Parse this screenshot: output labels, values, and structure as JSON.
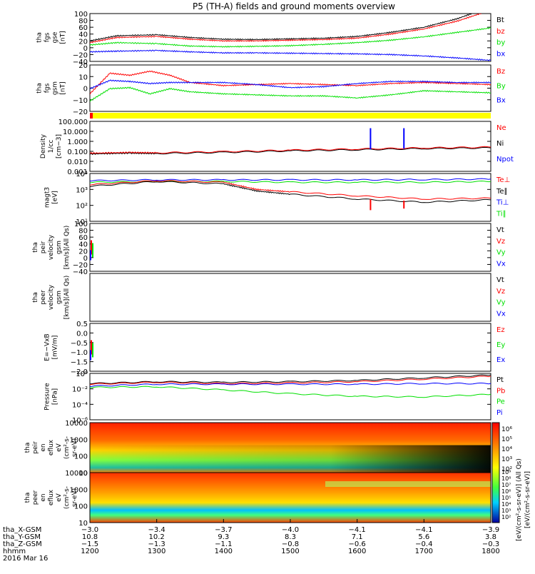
{
  "title": "P5 (TH-A) fields and ground moments overview",
  "colors": {
    "black": "#000000",
    "red": "#ff0000",
    "green": "#00e000",
    "blue": "#0000ff",
    "yellow": "#ffff00",
    "bar_red": "#ff0000"
  },
  "chart_data": [
    {
      "id": "fgs_gse",
      "type": "line",
      "ylabel": [
        "tha",
        "fgs",
        "gse",
        "[nT]"
      ],
      "ylim": [
        -40,
        100
      ],
      "yticks": [
        "100",
        "80",
        "60",
        "40",
        "20",
        "0",
        "−20",
        "−40"
      ],
      "legend": [
        {
          "label": "Bt",
          "color": "black"
        },
        {
          "label": "bz",
          "color": "red"
        },
        {
          "label": "by",
          "color": "green"
        },
        {
          "label": "bx",
          "color": "blue"
        }
      ],
      "series": [
        {
          "color": "black",
          "x": [
            1200,
            1240,
            1300,
            1350,
            1400,
            1450,
            1500,
            1550,
            1600,
            1650,
            1700,
            1750,
            1800
          ],
          "y": [
            20,
            35,
            38,
            30,
            25,
            24,
            26,
            28,
            33,
            45,
            60,
            85,
            120
          ]
        },
        {
          "color": "red",
          "x": [
            1200,
            1240,
            1300,
            1350,
            1400,
            1450,
            1500,
            1550,
            1600,
            1650,
            1700,
            1750,
            1800
          ],
          "y": [
            15,
            30,
            33,
            25,
            20,
            20,
            22,
            24,
            28,
            40,
            55,
            78,
            110
          ]
        },
        {
          "color": "green",
          "x": [
            1200,
            1240,
            1300,
            1350,
            1400,
            1450,
            1500,
            1550,
            1600,
            1650,
            1700,
            1750,
            1800
          ],
          "y": [
            8,
            15,
            12,
            5,
            3,
            4,
            6,
            10,
            15,
            22,
            32,
            45,
            58
          ]
        },
        {
          "color": "blue",
          "x": [
            1200,
            1240,
            1300,
            1350,
            1400,
            1450,
            1500,
            1550,
            1600,
            1650,
            1700,
            1750,
            1800
          ],
          "y": [
            -12,
            -10,
            -8,
            -12,
            -15,
            -15,
            -16,
            -17,
            -18,
            -20,
            -24,
            -30,
            -37
          ]
        }
      ]
    },
    {
      "id": "fgs_gsm",
      "type": "line",
      "ylabel": [
        "tha",
        "fgs",
        "gsm",
        "[nT]"
      ],
      "ylim": [
        -25,
        20
      ],
      "yticks": [
        "20",
        "10",
        "0",
        "−10",
        "−20"
      ],
      "legend": [
        {
          "label": "Bz",
          "color": "red"
        },
        {
          "label": "By",
          "color": "green"
        },
        {
          "label": "Bx",
          "color": "blue"
        }
      ],
      "series": [
        {
          "color": "red",
          "x": [
            1200,
            1230,
            1260,
            1290,
            1320,
            1350,
            1400,
            1450,
            1500,
            1550,
            1600,
            1650,
            1700,
            1750,
            1800
          ],
          "y": [
            -8,
            12,
            10,
            14,
            10,
            3,
            0,
            1,
            2,
            1,
            0,
            2,
            3,
            2,
            1
          ]
        },
        {
          "color": "green",
          "x": [
            1200,
            1230,
            1260,
            1290,
            1320,
            1350,
            1400,
            1450,
            1500,
            1550,
            1600,
            1650,
            1700,
            1750,
            1800
          ],
          "y": [
            -15,
            -3,
            -2,
            -8,
            -3,
            -6,
            -8,
            -9,
            -10,
            -10,
            -12,
            -9,
            -5,
            -6,
            -7
          ]
        },
        {
          "color": "blue",
          "x": [
            1200,
            1230,
            1260,
            1290,
            1320,
            1350,
            1400,
            1450,
            1500,
            1550,
            1600,
            1650,
            1700,
            1750,
            1800
          ],
          "y": [
            -3,
            5,
            4,
            2,
            3,
            3,
            3,
            1,
            -2,
            -1,
            2,
            4,
            4,
            3,
            3
          ]
        }
      ]
    },
    {
      "id": "density",
      "type": "line",
      "log": true,
      "ylabel": [
        "Density",
        "1/cc",
        "[cm−3]"
      ],
      "ylim": [
        -3.3,
        3.3
      ],
      "yticks": [
        "100.000",
        "10.000",
        "1.000",
        "0.100",
        "0.010",
        "0.001"
      ],
      "legend": [
        {
          "label": "Ne",
          "color": "red"
        },
        {
          "label": "Ni",
          "color": "black"
        },
        {
          "label": "Npot",
          "color": "blue"
        }
      ],
      "series": [
        {
          "color": "black",
          "x": [
            1200,
            1260,
            1300,
            1400,
            1500,
            1600,
            1700,
            1800
          ],
          "y": [
            -1.0,
            -0.9,
            -0.95,
            -0.8,
            -0.6,
            -0.45,
            -0.3,
            -0.2
          ]
        },
        {
          "color": "red",
          "x": [
            1200,
            1260,
            1300,
            1400,
            1500,
            1600,
            1700,
            1800
          ],
          "y": [
            -0.9,
            -0.8,
            -0.85,
            -0.7,
            -0.5,
            -0.35,
            -0.2,
            -0.1
          ]
        }
      ],
      "spikes": [
        {
          "x": 1620,
          "from": -0.4,
          "to": 2.4,
          "color": "blue"
        },
        {
          "x": 1670,
          "from": -0.3,
          "to": 2.4,
          "color": "blue"
        }
      ]
    },
    {
      "id": "temperature",
      "type": "line",
      "log": true,
      "ylabel": [
        "magt3",
        "[eV]"
      ],
      "ylim": [
        1,
        4
      ],
      "yticks": [
        "10⁴",
        "10³",
        "10²",
        "10¹"
      ],
      "legend": [
        {
          "label": "Te⊥",
          "color": "red"
        },
        {
          "label": "Te∥",
          "color": "black"
        },
        {
          "label": "Ti⊥",
          "color": "blue"
        },
        {
          "label": "Ti∥",
          "color": "green"
        }
      ],
      "series": [
        {
          "color": "blue",
          "x": [
            1200,
            1300,
            1400,
            1500,
            1600,
            1700,
            1800
          ],
          "y": [
            3.55,
            3.6,
            3.6,
            3.6,
            3.6,
            3.62,
            3.65
          ]
        },
        {
          "color": "green",
          "x": [
            1200,
            1300,
            1400,
            1500,
            1600,
            1700,
            1800
          ],
          "y": [
            3.45,
            3.5,
            3.5,
            3.45,
            3.45,
            3.45,
            3.5
          ]
        },
        {
          "color": "red",
          "x": [
            1200,
            1300,
            1400,
            1450,
            1500,
            1600,
            1700,
            1800
          ],
          "y": [
            3.3,
            3.55,
            3.45,
            3.0,
            2.85,
            2.6,
            2.4,
            2.45
          ]
        },
        {
          "color": "black",
          "x": [
            1200,
            1300,
            1400,
            1450,
            1500,
            1600,
            1700,
            1800
          ],
          "y": [
            3.2,
            3.5,
            3.35,
            2.9,
            2.7,
            2.4,
            2.2,
            2.35
          ]
        }
      ],
      "spikes": [
        {
          "x": 1620,
          "from": 2.4,
          "to": 1.7,
          "color": "red"
        },
        {
          "x": 1670,
          "from": 2.3,
          "to": 1.8,
          "color": "red"
        }
      ]
    },
    {
      "id": "peir_velocity",
      "type": "line",
      "ylabel": [
        "tha",
        "peir",
        "velocity",
        "gsm",
        "[km/s](All Qs)"
      ],
      "ylim": [
        -40,
        100
      ],
      "yticks": [
        "100",
        "80",
        "60",
        "40",
        "20",
        "0",
        "−20",
        "−40"
      ],
      "legend": [
        {
          "label": "Vt",
          "color": "black"
        },
        {
          "label": "Vz",
          "color": "red"
        },
        {
          "label": "Vy",
          "color": "green"
        },
        {
          "label": "Vx",
          "color": "blue"
        }
      ],
      "series": []
    },
    {
      "id": "peer_velocity",
      "type": "line",
      "ylabel": [
        "tha",
        "peer",
        "velocity",
        "gsm",
        "[km/s](All Qs)"
      ],
      "ylim": [
        0,
        1
      ],
      "yticks": [],
      "legend": [
        {
          "label": "Vt",
          "color": "black"
        },
        {
          "label": "Vz",
          "color": "red"
        },
        {
          "label": "Vy",
          "color": "green"
        },
        {
          "label": "Vx",
          "color": "blue"
        }
      ],
      "series": []
    },
    {
      "id": "efield",
      "type": "line",
      "ylabel": [
        "E=−VxB",
        "[mV/m]"
      ],
      "ylim": [
        -2.0,
        0.6
      ],
      "yticks": [
        "0.5",
        "0.0",
        "−0.5",
        "−1.0",
        "−1.5",
        "−2.0"
      ],
      "legend": [
        {
          "label": "Ez",
          "color": "red"
        },
        {
          "label": "Ey",
          "color": "green"
        },
        {
          "label": "Ex",
          "color": "blue"
        }
      ],
      "series": []
    },
    {
      "id": "pressure",
      "type": "line",
      "log": true,
      "ylabel": [
        "Pressure",
        "[nPa]"
      ],
      "ylim": [
        -6.3,
        1
      ],
      "yticks": [
        "10⁰",
        "10⁻²",
        "10⁻⁴",
        "10⁻⁶"
      ],
      "legend": [
        {
          "label": "Pt",
          "color": "black"
        },
        {
          "label": "Pb",
          "color": "red"
        },
        {
          "label": "Pe",
          "color": "green"
        },
        {
          "label": "Pi",
          "color": "blue"
        }
      ],
      "series": [
        {
          "color": "black",
          "x": [
            1200,
            1300,
            1400,
            1500,
            1600,
            1700,
            1800
          ],
          "y": [
            -0.6,
            -0.3,
            -0.4,
            -0.3,
            -0.1,
            0.3,
            0.75
          ]
        },
        {
          "color": "red",
          "x": [
            1200,
            1300,
            1400,
            1500,
            1600,
            1700,
            1800
          ],
          "y": [
            -0.7,
            -0.4,
            -0.6,
            -0.5,
            -0.3,
            0.1,
            0.55
          ]
        },
        {
          "color": "blue",
          "x": [
            1200,
            1300,
            1400,
            1500,
            1600,
            1700,
            1800
          ],
          "y": [
            -1.0,
            -0.7,
            -0.7,
            -0.7,
            -0.7,
            -0.6,
            -0.6
          ]
        },
        {
          "color": "green",
          "x": [
            1200,
            1300,
            1400,
            1500,
            1600,
            1700,
            1800
          ],
          "y": [
            -1.2,
            -1.1,
            -1.6,
            -2.2,
            -2.6,
            -2.7,
            -2.3
          ]
        }
      ]
    },
    {
      "id": "peir_spec",
      "type": "heatmap",
      "ylabel": [
        "tha",
        "peir",
        "en",
        "eflux",
        "eV",
        "(cm²-s-",
        "sr-eV)"
      ],
      "yticks": [
        "10000",
        "1000",
        "100",
        "10"
      ]
    },
    {
      "id": "peer_spec",
      "type": "heatmap",
      "ylabel": [
        "tha",
        "peer",
        "en",
        "eflux",
        "eV",
        "(cm²-s-",
        "sr-eV)"
      ],
      "yticks": [
        "10000",
        "1000",
        "100",
        "10"
      ]
    }
  ],
  "colorbar": {
    "ticks_top": [
      "10⁶",
      "10⁵",
      "10⁴",
      "10³",
      "10²"
    ],
    "ticks_bottom": [
      "10⁹",
      "10⁸",
      "10⁷",
      "10⁶",
      "10⁵",
      "10⁴",
      "10³",
      "10²"
    ],
    "label": "[eV/(cm²-s-sr-eV)] (All Qs)",
    "label2": "[eV/(cm²-s-sr-eV)]"
  },
  "xaxis": {
    "rows": [
      {
        "name": "tha_X-GSM",
        "values": [
          "−3.0",
          "−3.4",
          "−3.7",
          "−4.0",
          "−4.1",
          "−4.1",
          "−3.9"
        ]
      },
      {
        "name": "tha_Y-GSM",
        "values": [
          "10.8",
          "10.2",
          "9.3",
          "8.3",
          "7.1",
          "5.6",
          "3.8"
        ]
      },
      {
        "name": "tha_Z-GSM",
        "values": [
          "−1.5",
          "−1.3",
          "−1.1",
          "−0.8",
          "−0.6",
          "−0.4",
          "−0.3"
        ]
      },
      {
        "name": "hhmm",
        "values": [
          "1200",
          "1300",
          "1400",
          "1500",
          "1600",
          "1700",
          "1800"
        ]
      }
    ],
    "date": "2016 Mar 16"
  }
}
